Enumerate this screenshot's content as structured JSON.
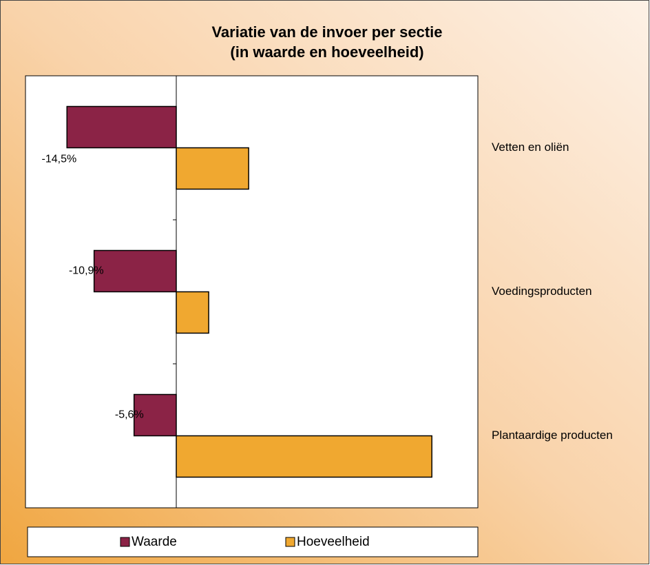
{
  "chart_data": {
    "type": "barh",
    "title": [
      "Variatie van de invoer per sectie",
      "(in waarde en hoeveelheid)"
    ],
    "categories": [
      "Vetten en oliën",
      "Voedingsproducten",
      "Plantaardige producten"
    ],
    "series": [
      {
        "name": "Waarde",
        "color": "#8b2346",
        "values": [
          -14.5,
          -10.9,
          -5.6
        ],
        "value_labels": [
          "-14,5%",
          "-10,9%",
          "-5,6%"
        ]
      },
      {
        "name": "Hoeveelheid",
        "color": "#f0a830",
        "values": [
          9.6,
          4.3,
          33.9
        ]
      }
    ],
    "xlim": [
      -20,
      40
    ],
    "legend": "bottom"
  }
}
